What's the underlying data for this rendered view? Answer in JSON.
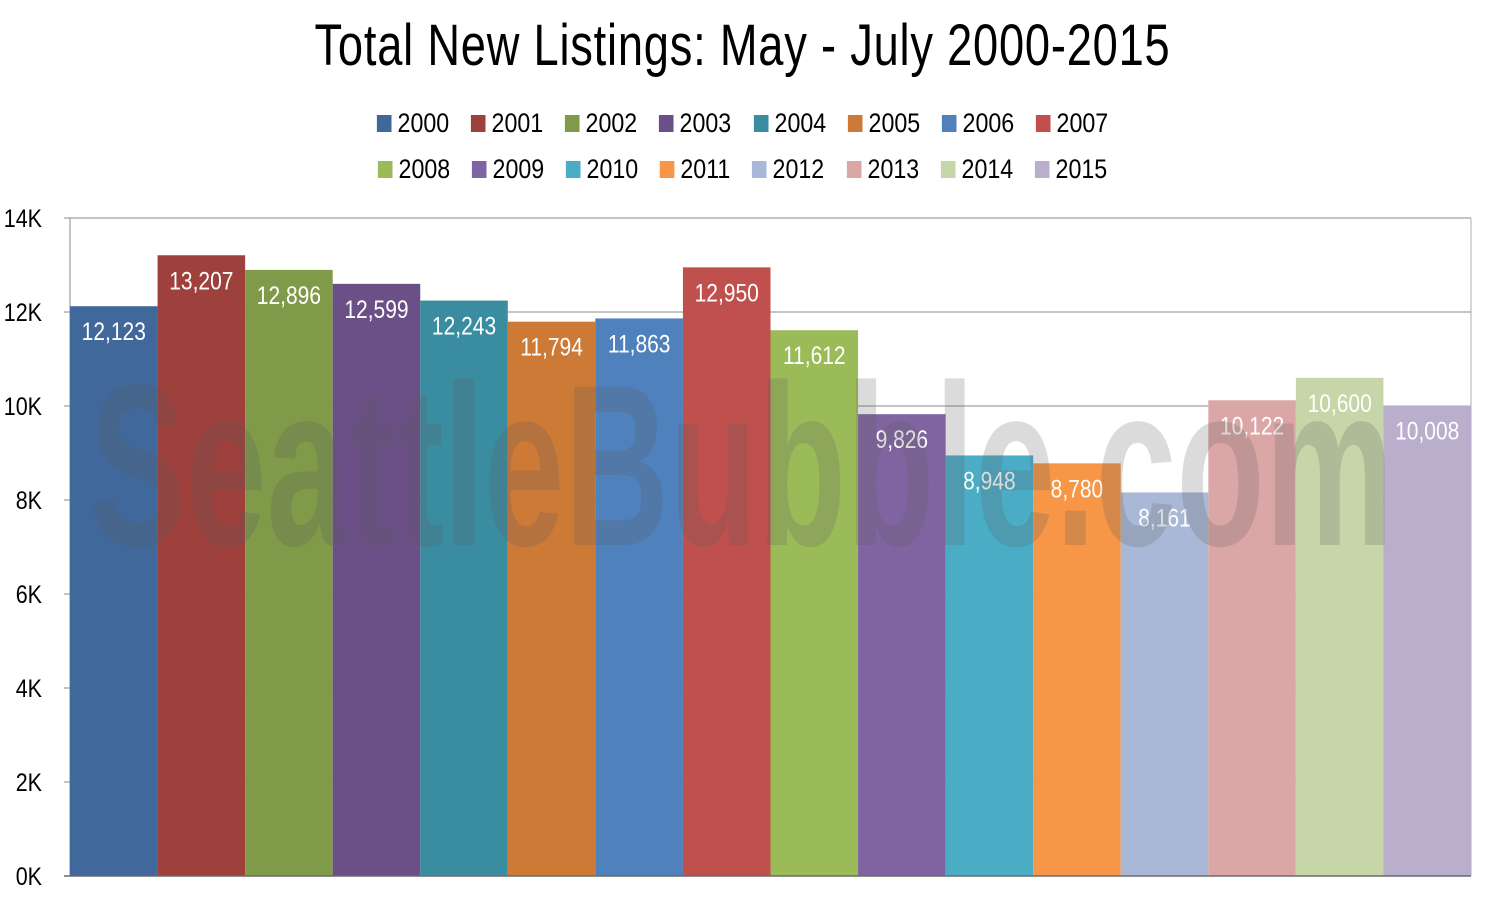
{
  "chart_data": {
    "type": "bar",
    "title": "Total New Listings: May - July 2000-2015",
    "xlabel": "",
    "ylabel": "",
    "ylim": [
      0,
      14000
    ],
    "y_ticks": [
      0,
      2000,
      4000,
      6000,
      8000,
      10000,
      12000,
      14000
    ],
    "y_tick_labels": [
      "0K",
      "2K",
      "4K",
      "6K",
      "8K",
      "10K",
      "12K",
      "14K"
    ],
    "grid": true,
    "legend_position": "top",
    "watermark": "SeattleBubble.com",
    "series": [
      {
        "name": "2000",
        "value": 12123,
        "label": "12,123",
        "color": "#41689b"
      },
      {
        "name": "2001",
        "value": 13207,
        "label": "13,207",
        "color": "#9e413d"
      },
      {
        "name": "2002",
        "value": 12896,
        "label": "12,896",
        "color": "#7f9a48"
      },
      {
        "name": "2003",
        "value": 12599,
        "label": "12,599",
        "color": "#6a5087"
      },
      {
        "name": "2004",
        "value": 12243,
        "label": "12,243",
        "color": "#3a8ca0"
      },
      {
        "name": "2005",
        "value": 11794,
        "label": "11,794",
        "color": "#cd7a36"
      },
      {
        "name": "2006",
        "value": 11863,
        "label": "11,863",
        "color": "#4f81bd"
      },
      {
        "name": "2007",
        "value": 12950,
        "label": "12,950",
        "color": "#c0504d"
      },
      {
        "name": "2008",
        "value": 11612,
        "label": "11,612",
        "color": "#9bbb59"
      },
      {
        "name": "2009",
        "value": 9826,
        "label": "9,826",
        "color": "#8064a2"
      },
      {
        "name": "2010",
        "value": 8948,
        "label": "8,948",
        "color": "#4bacc6"
      },
      {
        "name": "2011",
        "value": 8780,
        "label": "8,780",
        "color": "#f79646"
      },
      {
        "name": "2012",
        "value": 8161,
        "label": "8,161",
        "color": "#aab8d8"
      },
      {
        "name": "2013",
        "value": 10122,
        "label": "10,122",
        "color": "#dba7a6"
      },
      {
        "name": "2014",
        "value": 10600,
        "label": "10,600",
        "color": "#c7d6a9"
      },
      {
        "name": "2015",
        "value": 10008,
        "label": "10,008",
        "color": "#b9aecb"
      }
    ]
  }
}
